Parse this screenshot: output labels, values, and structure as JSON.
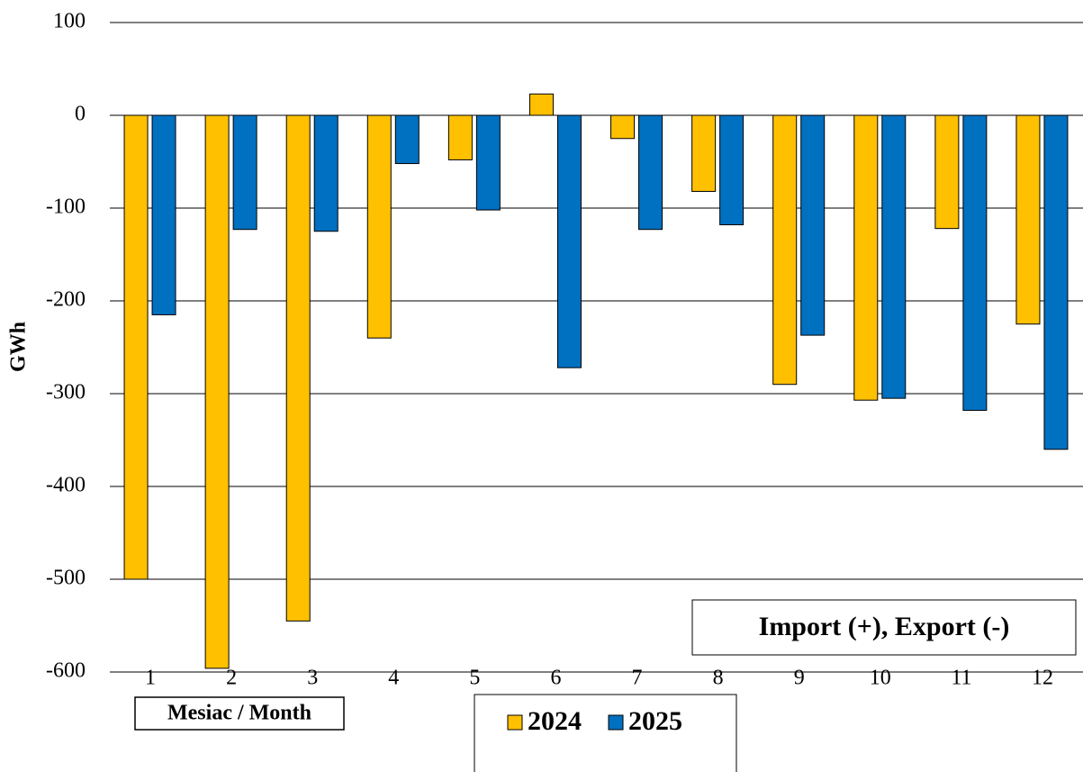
{
  "chart_data": {
    "type": "bar",
    "annotation": "Import (+),  Export (-)",
    "x_label": "Mesiac / Month",
    "y_label": "GWh",
    "categories": [
      "1",
      "2",
      "3",
      "4",
      "5",
      "6",
      "7",
      "8",
      "9",
      "10",
      "11",
      "12"
    ],
    "series": [
      {
        "name": "2024",
        "color": "#FFC000",
        "values": [
          -500,
          -596,
          -545,
          -240,
          -48,
          23,
          -25,
          -82,
          -290,
          -307,
          -122,
          -225
        ]
      },
      {
        "name": "2025",
        "color": "#0070C0",
        "values": [
          -215,
          -123,
          -125,
          -52,
          -102,
          -272,
          -123,
          -118,
          -237,
          -305,
          -318,
          -360
        ]
      }
    ],
    "ylim": [
      -600,
      100
    ],
    "yticks": [
      100,
      0,
      -100,
      -200,
      -300,
      -400,
      -500,
      -600
    ],
    "grid": true
  }
}
